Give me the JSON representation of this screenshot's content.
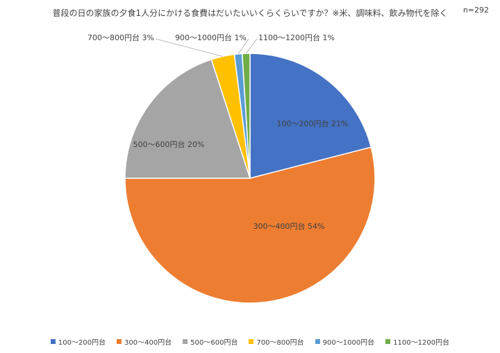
{
  "chart_data": {
    "type": "pie",
    "title": "普段の日の家族の夕食1人分にかける食費はだいたいいくらくらいですか？※米、調味料、飲み物代を除く",
    "sample_size": "n=292",
    "slices": [
      {
        "name": "100〜200円台",
        "value": 21,
        "color": "#4472C4"
      },
      {
        "name": "300〜400円台",
        "value": 54,
        "color": "#ED7D31"
      },
      {
        "name": "500〜600円台",
        "value": 20,
        "color": "#A5A5A5"
      },
      {
        "name": "700〜800円台",
        "value": 3,
        "color": "#FFC000"
      },
      {
        "name": "900〜1000円台",
        "value": 1,
        "color": "#5B9BD5"
      },
      {
        "name": "1100〜1200円台",
        "value": 1,
        "color": "#70AD47"
      }
    ],
    "legend_position": "bottom"
  }
}
